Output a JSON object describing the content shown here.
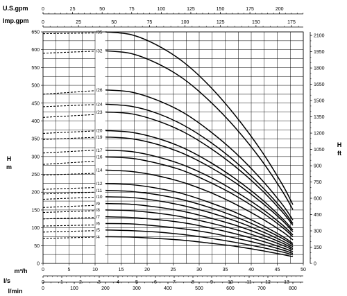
{
  "chart_data": {
    "type": "line",
    "xlabel": "m³/h",
    "ylabel_left": "H\nm",
    "ylabel_right": "H\nft",
    "xlim": [
      0,
      50
    ],
    "ylim": [
      0,
      650
    ],
    "x_ticks": [
      "0",
      "5",
      "10",
      "15",
      "20",
      "25",
      "30",
      "35",
      "40",
      "45",
      "50"
    ],
    "y_ticks": [
      "0",
      "50",
      "100",
      "150",
      "200",
      "250",
      "300",
      "350",
      "400",
      "450",
      "500",
      "550",
      "600",
      "650"
    ],
    "right_axis": {
      "label": "H ft",
      "ticks": [
        "0",
        "150",
        "300",
        "450",
        "600",
        "750",
        "900",
        "1050",
        "1200",
        "1350",
        "1500",
        "1650",
        "1800",
        "1950",
        "2100"
      ]
    },
    "top_axes": [
      {
        "label": "U.S.gpm",
        "ticks": [
          "0",
          "25",
          "50",
          "75",
          "100",
          "125",
          "150",
          "175",
          "200"
        ]
      },
      {
        "label": "Imp.gpm",
        "ticks": [
          "0",
          "25",
          "50",
          "75",
          "100",
          "125",
          "150",
          "175"
        ]
      }
    ],
    "bottom_axes": [
      {
        "label": "l/s",
        "ticks": [
          "0",
          "1",
          "2",
          "3",
          "4",
          "5",
          "6",
          "7",
          "8",
          "9",
          "10",
          "11",
          "12",
          "13"
        ]
      },
      {
        "label": "l/min",
        "ticks": [
          "0",
          "100",
          "200",
          "300",
          "400",
          "500",
          "600",
          "700",
          "800"
        ]
      }
    ],
    "flow_points": [
      12,
      17,
      22,
      27,
      32,
      37,
      42,
      46,
      48
    ],
    "curves": [
      {
        "name": "/35",
        "head": [
          650,
          642,
          612,
          565,
          498,
          414,
          315,
          221,
          165
        ]
      },
      {
        "name": "/32",
        "head": [
          597,
          589,
          561,
          518,
          456,
          380,
          289,
          202,
          151
        ]
      },
      {
        "name": "/26",
        "head": [
          487,
          481,
          458,
          423,
          372,
          310,
          235,
          165,
          122
        ]
      },
      {
        "name": "/24",
        "head": [
          447,
          441,
          421,
          388,
          342,
          285,
          216,
          152,
          112
        ]
      },
      {
        "name": "/23",
        "head": [
          425,
          420,
          400,
          369,
          325,
          271,
          206,
          144,
          107
        ]
      },
      {
        "name": "/20",
        "head": [
          373,
          368,
          351,
          324,
          285,
          237,
          180,
          126,
          94
        ]
      },
      {
        "name": "/19",
        "head": [
          355,
          350,
          334,
          308,
          271,
          226,
          171,
          120,
          89
        ]
      },
      {
        "name": "/17",
        "head": [
          318,
          314,
          299,
          276,
          243,
          202,
          154,
          108,
          80
        ]
      },
      {
        "name": "/16",
        "head": [
          299,
          295,
          281,
          260,
          228,
          190,
          144,
          101,
          75
        ]
      },
      {
        "name": "/14",
        "head": [
          262,
          258,
          246,
          227,
          200,
          166,
          126,
          89,
          66
        ]
      },
      {
        "name": "/12",
        "head": [
          224,
          221,
          211,
          195,
          171,
          143,
          108,
          76,
          56
        ]
      },
      {
        "name": "/11",
        "head": [
          205,
          202,
          193,
          178,
          157,
          131,
          99,
          70,
          52
        ]
      },
      {
        "name": "/10",
        "head": [
          187,
          185,
          176,
          162,
          143,
          119,
          90,
          63,
          47
        ]
      },
      {
        "name": "/9",
        "head": [
          168,
          166,
          158,
          146,
          128,
          107,
          81,
          57,
          42
        ]
      },
      {
        "name": "/8",
        "head": [
          150,
          148,
          141,
          130,
          114,
          95,
          72,
          51,
          38
        ]
      },
      {
        "name": "/7",
        "head": [
          131,
          129,
          123,
          114,
          100,
          83,
          63,
          44,
          33
        ]
      },
      {
        "name": "/6",
        "head": [
          112,
          111,
          105,
          97,
          86,
          71,
          54,
          38,
          28
        ]
      },
      {
        "name": "/5",
        "head": [
          94,
          92,
          88,
          81,
          71,
          59,
          45,
          32,
          24
        ]
      },
      {
        "name": "/4",
        "head": [
          75,
          74,
          70,
          65,
          57,
          48,
          36,
          25,
          19
        ]
      }
    ],
    "dashed_segments": [
      {
        "x": [
          0,
          10
        ],
        "y": [
          645,
          647
        ]
      },
      {
        "x": [
          0,
          10
        ],
        "y": [
          590,
          596
        ]
      },
      {
        "x": [
          0,
          10
        ],
        "y": [
          475,
          485
        ]
      },
      {
        "x": [
          0,
          10
        ],
        "y": [
          440,
          446
        ]
      },
      {
        "x": [
          0,
          10
        ],
        "y": [
          410,
          418
        ]
      },
      {
        "x": [
          0,
          10
        ],
        "y": [
          365,
          372
        ]
      },
      {
        "x": [
          0,
          10
        ],
        "y": [
          348,
          354
        ]
      },
      {
        "x": [
          0,
          10
        ],
        "y": [
          310,
          318
        ]
      },
      {
        "x": [
          0,
          10
        ],
        "y": [
          278,
          287
        ]
      },
      {
        "x": [
          0,
          10
        ],
        "y": [
          248,
          253
        ]
      },
      {
        "x": [
          0,
          10
        ],
        "y": [
          208,
          213
        ]
      },
      {
        "x": [
          0,
          10
        ],
        "y": [
          195,
          200
        ]
      },
      {
        "x": [
          0,
          10
        ],
        "y": [
          180,
          186
        ]
      },
      {
        "x": [
          0,
          10
        ],
        "y": [
          157,
          163
        ]
      },
      {
        "x": [
          0,
          10
        ],
        "y": [
          143,
          148
        ]
      },
      {
        "x": [
          0,
          10
        ],
        "y": [
          125,
          129
        ]
      },
      {
        "x": [
          0,
          10
        ],
        "y": [
          105,
          108
        ]
      },
      {
        "x": [
          0,
          10
        ],
        "y": [
          88,
          92
        ]
      },
      {
        "x": [
          0,
          10
        ],
        "y": [
          70,
          74
        ]
      }
    ],
    "grid": true
  }
}
